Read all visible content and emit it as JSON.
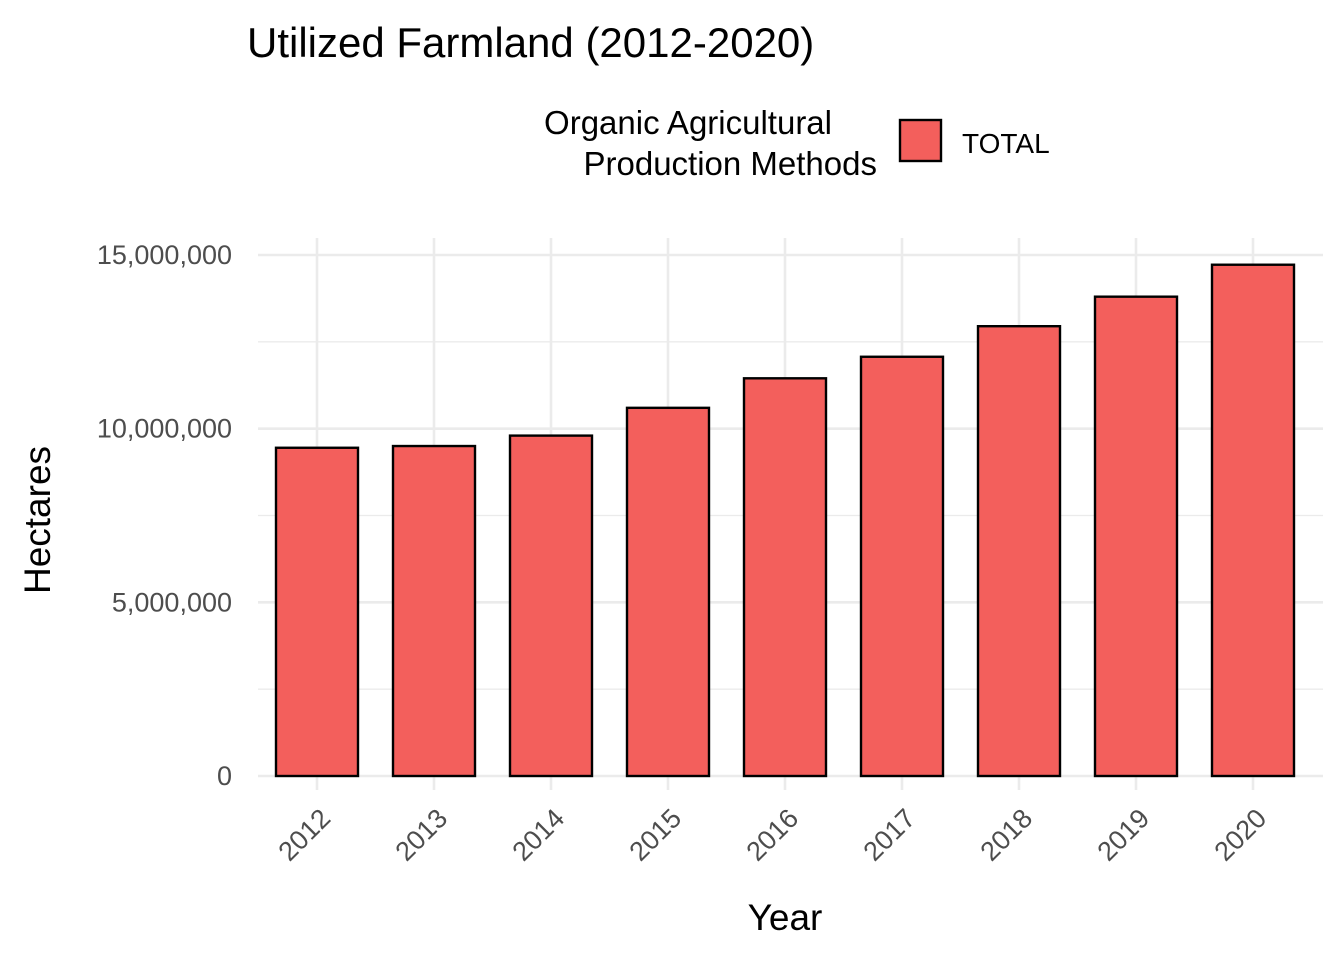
{
  "chart_data": {
    "type": "bar",
    "title": "Utilized Farmland (2012-2020)",
    "xlabel": "Year",
    "ylabel": "Hectares",
    "categories": [
      "2012",
      "2013",
      "2014",
      "2015",
      "2016",
      "2017",
      "2018",
      "2019",
      "2020"
    ],
    "series": [
      {
        "name": "TOTAL",
        "values": [
          9450000,
          9500000,
          9800000,
          10600000,
          11450000,
          12070000,
          12950000,
          13800000,
          14720000
        ]
      }
    ],
    "ylim": [
      0,
      15000000
    ],
    "yticks": [
      0,
      5000000,
      10000000,
      15000000
    ],
    "ytick_labels": [
      "0",
      "5,000,000",
      "10,000,000",
      "15,000,000"
    ],
    "legend": {
      "title_lines": [
        "Organic Agricultural",
        "Production Methods"
      ],
      "entries": [
        "TOTAL"
      ],
      "position": "top"
    },
    "grid": true,
    "colors": {
      "fill": "#F35F5C",
      "outline": "#000000",
      "grid": "#EBEBEB"
    }
  }
}
